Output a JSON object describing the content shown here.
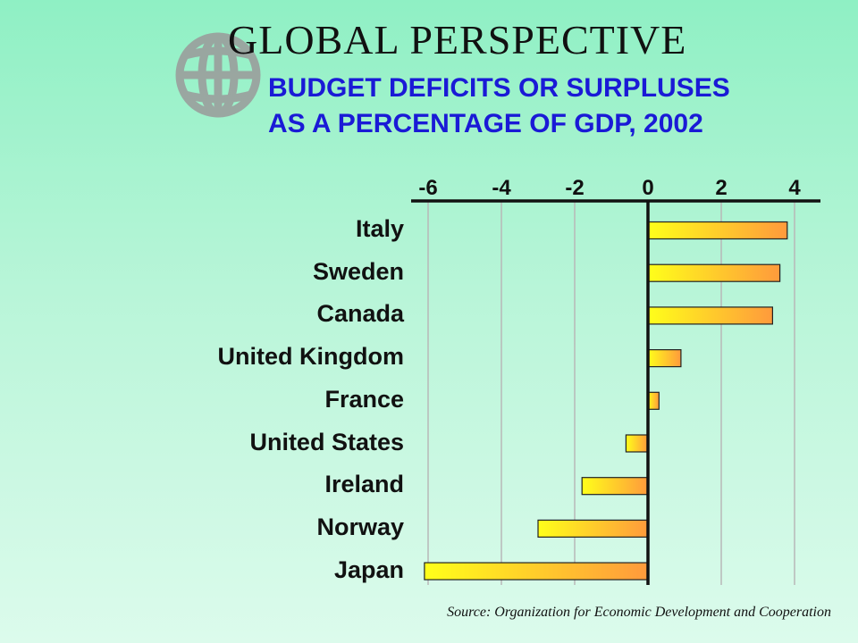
{
  "title": "GLOBAL  PERSPECTIVE",
  "subtitle_lines": [
    "BUDGET DEFICITS OR SURPLUSES",
    "AS A PERCENTAGE OF GDP, 2002"
  ],
  "source": "Source: Organization for Economic Development and Cooperation",
  "icon": "globe-icon",
  "colors": {
    "bar_light": "#ffff1a",
    "bar_dark": "#ff9a3c",
    "title_blue": "#1a1ad6"
  },
  "chart_data": {
    "type": "bar",
    "orientation": "horizontal",
    "title": "BUDGET DEFICITS OR SURPLUSES AS A PERCENTAGE OF GDP, 2002",
    "categories": [
      "Italy",
      "Sweden",
      "Canada",
      "United Kingdom",
      "France",
      "United States",
      "Ireland",
      "Norway",
      "Japan"
    ],
    "values": [
      3.8,
      3.6,
      3.4,
      0.9,
      0.3,
      -0.6,
      -1.8,
      -3.0,
      -6.1
    ],
    "xlim": [
      -6.2,
      4.5
    ],
    "ticks": [
      "-6",
      "-4",
      "-2",
      "0",
      "2",
      "4"
    ],
    "tick_values": [
      -6,
      -4,
      -2,
      0,
      2,
      4
    ],
    "grid": true
  }
}
